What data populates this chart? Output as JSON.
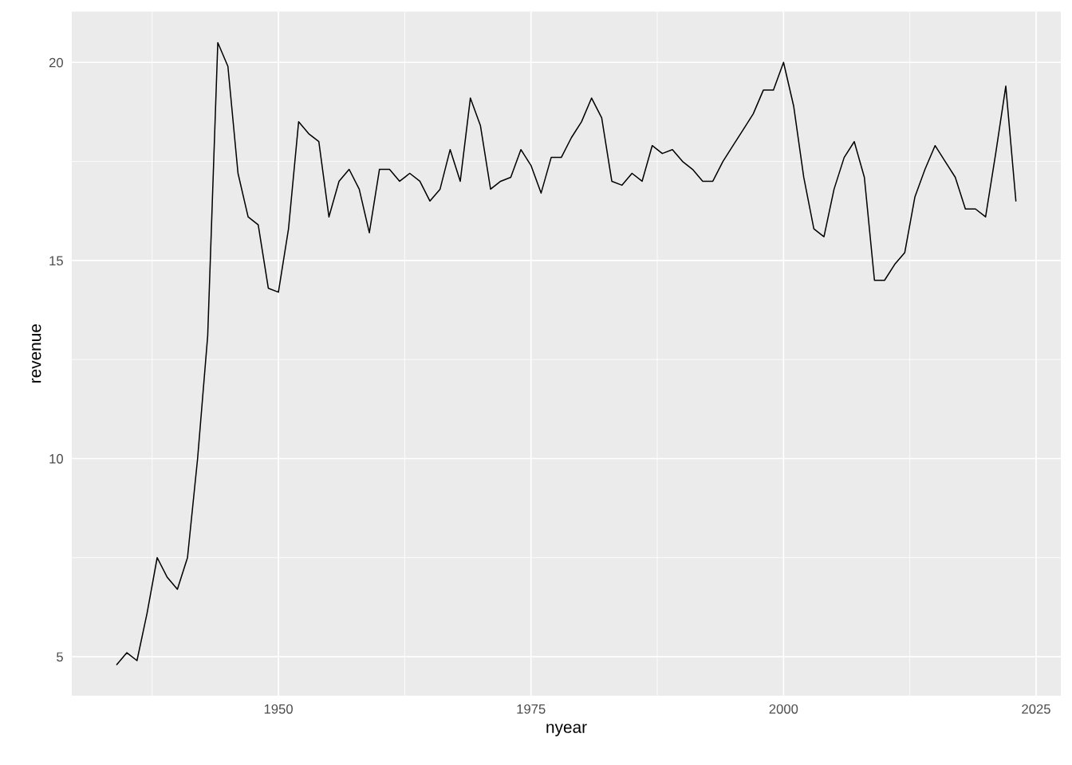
{
  "chart_data": {
    "type": "line",
    "xlabel": "nyear",
    "ylabel": "revenue",
    "x": [
      1934,
      1935,
      1936,
      1937,
      1938,
      1939,
      1940,
      1941,
      1942,
      1943,
      1944,
      1945,
      1946,
      1947,
      1948,
      1949,
      1950,
      1951,
      1952,
      1953,
      1954,
      1955,
      1956,
      1957,
      1958,
      1959,
      1960,
      1961,
      1962,
      1963,
      1964,
      1965,
      1966,
      1967,
      1968,
      1969,
      1970,
      1971,
      1972,
      1973,
      1974,
      1975,
      1976,
      1977,
      1978,
      1979,
      1980,
      1981,
      1982,
      1983,
      1984,
      1985,
      1986,
      1987,
      1988,
      1989,
      1990,
      1991,
      1992,
      1993,
      1994,
      1995,
      1996,
      1997,
      1998,
      1999,
      2000,
      2001,
      2002,
      2003,
      2004,
      2005,
      2006,
      2007,
      2008,
      2009,
      2010,
      2011,
      2012,
      2013,
      2014,
      2015,
      2016,
      2017,
      2018,
      2019,
      2020,
      2021,
      2022,
      2023
    ],
    "series": [
      {
        "color": "#000000",
        "values": [
          4.8,
          5.1,
          4.9,
          6.1,
          7.5,
          7.0,
          6.7,
          7.5,
          10.0,
          13.1,
          20.5,
          19.9,
          17.2,
          16.1,
          15.9,
          14.3,
          14.2,
          15.8,
          18.5,
          18.2,
          18.0,
          16.1,
          17.0,
          17.3,
          16.8,
          15.7,
          17.3,
          17.3,
          17.0,
          17.2,
          17.0,
          16.5,
          16.8,
          17.8,
          17.0,
          19.1,
          18.4,
          16.8,
          17.0,
          17.1,
          17.8,
          17.4,
          16.7,
          17.6,
          17.6,
          18.1,
          18.5,
          19.1,
          18.6,
          17.0,
          16.9,
          17.2,
          17.0,
          17.9,
          17.7,
          17.8,
          17.5,
          17.3,
          17.0,
          17.0,
          17.5,
          17.9,
          18.3,
          18.7,
          19.3,
          19.3,
          20.0,
          18.9,
          17.1,
          15.8,
          15.6,
          16.8,
          17.6,
          18.0,
          17.1,
          14.5,
          14.5,
          14.9,
          15.2,
          16.6,
          17.3,
          17.9,
          17.5,
          17.1,
          16.3,
          16.3,
          16.1,
          17.7,
          19.4,
          16.5
        ]
      }
    ],
    "xlim": [
      1929.55,
      2027.45
    ],
    "ylim": [
      4.015,
      21.285
    ],
    "xticks": [
      {
        "value": 1937.5,
        "label": null
      },
      1950,
      {
        "value": 1962.5,
        "label": null
      },
      1975,
      {
        "value": 1987.5,
        "label": null
      },
      2000,
      {
        "value": 2012.5,
        "label": null
      },
      2025
    ],
    "yticks": [
      5,
      {
        "value": 7.5,
        "label": null
      },
      10,
      {
        "value": 12.5,
        "label": null
      },
      15,
      {
        "value": 17.5,
        "label": null
      },
      20
    ],
    "grid": true,
    "legend": false,
    "marker": "none",
    "line_style": "solid"
  }
}
